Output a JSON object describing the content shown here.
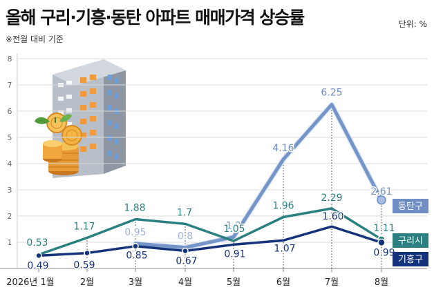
{
  "chart_data": {
    "type": "line",
    "title": "올해 구리·기흥·동탄 아파트 매매가격 상승률",
    "subtitle": "※전월 대비 기준",
    "unit": "단위: %",
    "categories": [
      "2026년 1월",
      "2월",
      "3월",
      "4월",
      "5월",
      "6월",
      "7월",
      "8월"
    ],
    "yticks": [
      1,
      2,
      3,
      4,
      5,
      6,
      7,
      8
    ],
    "ylim": [
      0,
      8
    ],
    "series": [
      {
        "name": "동탄구",
        "color": "#6f8fc4",
        "values": [
          null,
          null,
          0.95,
          0.8,
          1.2,
          4.16,
          6.25,
          2.61
        ],
        "labels": [
          null,
          null,
          "0.95",
          "0.8",
          "1.2",
          "4.16",
          "6.25",
          "2.61"
        ]
      },
      {
        "name": "구리시",
        "color": "#2a7f80",
        "values": [
          0.53,
          1.17,
          1.88,
          1.7,
          1.05,
          1.96,
          2.29,
          1.11
        ],
        "labels": [
          "0.53",
          "1.17",
          "1.88",
          "1.7",
          "1.05",
          "1.96",
          "2.29",
          "1.11"
        ]
      },
      {
        "name": "기흥구",
        "color": "#15337a",
        "values": [
          0.49,
          0.59,
          0.85,
          0.67,
          0.91,
          1.07,
          1.6,
          0.99
        ],
        "labels": [
          "0.49",
          "0.59",
          "0.85",
          "0.67",
          "0.91",
          "1.07",
          "1.60",
          "0.99"
        ]
      }
    ]
  }
}
